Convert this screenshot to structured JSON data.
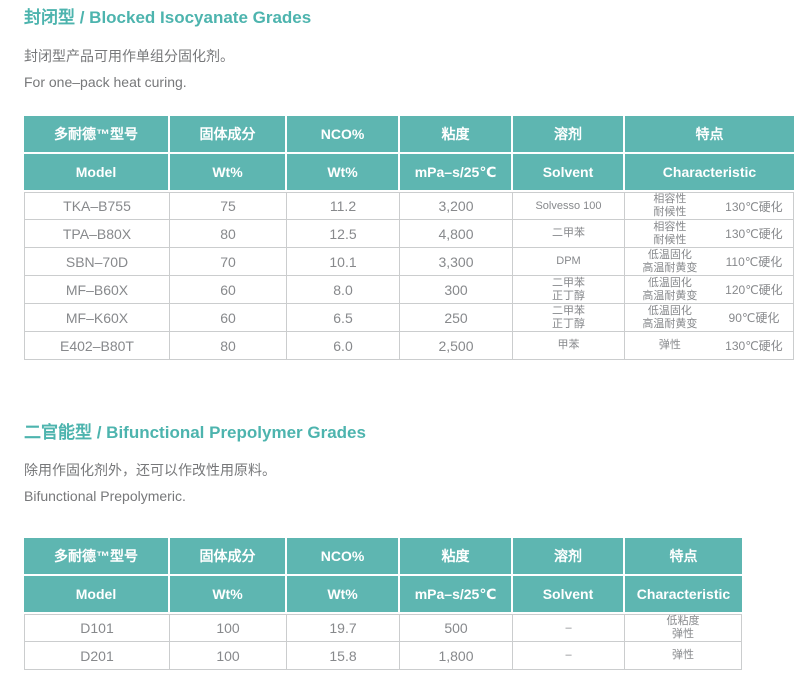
{
  "colors": {
    "accent_title": "#4db4ae",
    "table_header_bg": "#5eb6b1",
    "body_text": "#77787a",
    "cell_text": "#87898c",
    "border": "#cbcdce"
  },
  "sections": [
    {
      "title": "封闭型 / Blocked Isocyanate Grades",
      "desc_zh": "封闭型产品可用作单组分固化剂。",
      "desc_en": "For one–pack heat curing.",
      "table": {
        "headers_zh": [
          "多耐德™型号",
          "固体成分",
          "NCO%",
          "粘度",
          "溶剂",
          "特点"
        ],
        "headers_en": [
          "Model",
          "Wt%",
          "Wt%",
          "mPa–s/25℃",
          "Solvent",
          "Characteristic"
        ],
        "rows": [
          {
            "model": "TKA–B755",
            "solid": "75",
            "nco": "11.2",
            "viscosity": "3,200",
            "solvent": [
              "Solvesso 100"
            ],
            "traits": [
              "相容性",
              "耐候性"
            ],
            "cure": "130℃硬化"
          },
          {
            "model": "TPA–B80X",
            "solid": "80",
            "nco": "12.5",
            "viscosity": "4,800",
            "solvent": [
              "二甲苯"
            ],
            "traits": [
              "相容性",
              "耐候性"
            ],
            "cure": "130℃硬化"
          },
          {
            "model": "SBN–70D",
            "solid": "70",
            "nco": "10.1",
            "viscosity": "3,300",
            "solvent": [
              "DPM"
            ],
            "traits": [
              "低温固化",
              "高温耐黄变"
            ],
            "cure": "110℃硬化"
          },
          {
            "model": "MF–B60X",
            "solid": "60",
            "nco": "8.0",
            "viscosity": "300",
            "solvent": [
              "二甲苯",
              "正丁醇"
            ],
            "traits": [
              "低温固化",
              "高温耐黄变"
            ],
            "cure": "120℃硬化"
          },
          {
            "model": "MF–K60X",
            "solid": "60",
            "nco": "6.5",
            "viscosity": "250",
            "solvent": [
              "二甲苯",
              "正丁醇"
            ],
            "traits": [
              "低温固化",
              "高温耐黄变"
            ],
            "cure": "90℃硬化"
          },
          {
            "model": "E402–B80T",
            "solid": "80",
            "nco": "6.0",
            "viscosity": "2,500",
            "solvent": [
              "甲苯"
            ],
            "traits": [
              "弹性"
            ],
            "cure": "130℃硬化"
          }
        ]
      }
    },
    {
      "title": "二官能型 / Bifunctional Prepolymer Grades",
      "desc_zh": "除用作固化剂外，还可以作改性用原料。",
      "desc_en": "Bifunctional Prepolymeric.",
      "table": {
        "headers_zh": [
          "多耐德™型号",
          "固体成分",
          "NCO%",
          "粘度",
          "溶剂",
          "特点"
        ],
        "headers_en": [
          "Model",
          "Wt%",
          "Wt%",
          "mPa–s/25℃",
          "Solvent",
          "Characteristic"
        ],
        "rows": [
          {
            "model": "D101",
            "solid": "100",
            "nco": "19.7",
            "viscosity": "500",
            "solvent": [
              "–"
            ],
            "traits": [
              "低粘度",
              "弹性"
            ],
            "cure": ""
          },
          {
            "model": "D201",
            "solid": "100",
            "nco": "15.8",
            "viscosity": "1,800",
            "solvent": [
              "–"
            ],
            "traits": [
              "弹性"
            ],
            "cure": ""
          }
        ]
      }
    }
  ]
}
